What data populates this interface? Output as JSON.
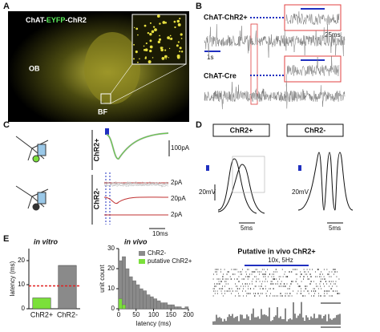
{
  "panels": {
    "a": {
      "letter": "A",
      "title_parts": [
        "ChAT-",
        "EYFP",
        "-ChR2"
      ],
      "ob": "OB",
      "bf": "BF"
    },
    "b": {
      "letter": "B",
      "top_label": "ChAT-ChR2+",
      "inset_scale": "25ms",
      "time_scale": "1s",
      "bottom_label": "ChAT-Cre"
    },
    "c": {
      "letter": "C",
      "pos_label": "ChR2+",
      "neg_label": "ChR2-",
      "scale_100pa": "100pA",
      "scale_2pa_a": "2pA",
      "scale_20pa": "20pA",
      "scale_2pa_b": "2pA",
      "scale_10ms": "10ms"
    },
    "d": {
      "letter": "D",
      "pos_label": "ChR2+",
      "neg_label": "ChR2-",
      "pos_mv": "20mV",
      "pos_ms": "5ms",
      "neg_mv": "20mV",
      "neg_ms": "5ms"
    },
    "e": {
      "letter": "E",
      "vitro": "in vitro",
      "vivo": "in vivo",
      "raster_title": "Putative in vivo ChR2+",
      "stim": "10x, 5Hz"
    }
  },
  "chart_data": [
    {
      "type": "bar",
      "ylabel": "latency (ms)",
      "categories": [
        "ChR2+",
        "ChR2-"
      ],
      "values": [
        4.5,
        18
      ],
      "colors": [
        "#7be03a",
        "#8a8a8a"
      ],
      "threshold": 9.5,
      "threshold_color": "#e02020",
      "ylim": [
        0,
        25
      ],
      "yticks": [
        0,
        10,
        20
      ]
    },
    {
      "type": "histogram",
      "xlabel": "latency (ms)",
      "ylabel": "unit count",
      "bins": [
        0,
        10,
        20,
        30,
        40,
        50,
        60,
        70,
        80,
        90,
        100,
        110,
        120,
        130,
        140,
        150,
        160,
        170,
        180,
        190,
        200
      ],
      "series": [
        {
          "name": "ChR2-",
          "color": "#8a8a8a",
          "values": [
            24,
            26,
            20,
            16,
            14,
            12,
            10,
            9,
            7,
            6,
            5,
            4,
            3,
            3,
            2,
            2,
            1,
            1,
            0,
            1
          ]
        },
        {
          "name": "putative ChR2+",
          "color": "#7be03a",
          "values": [
            5,
            2,
            0,
            0,
            0,
            0,
            0,
            0,
            0,
            0,
            0,
            0,
            0,
            0,
            0,
            0,
            0,
            0,
            0,
            0
          ]
        }
      ],
      "xlim": [
        0,
        200
      ],
      "xticks": [
        0,
        50,
        100,
        150,
        200
      ],
      "ylim": [
        0,
        30
      ],
      "yticks": [
        0,
        10,
        20,
        30
      ]
    }
  ]
}
